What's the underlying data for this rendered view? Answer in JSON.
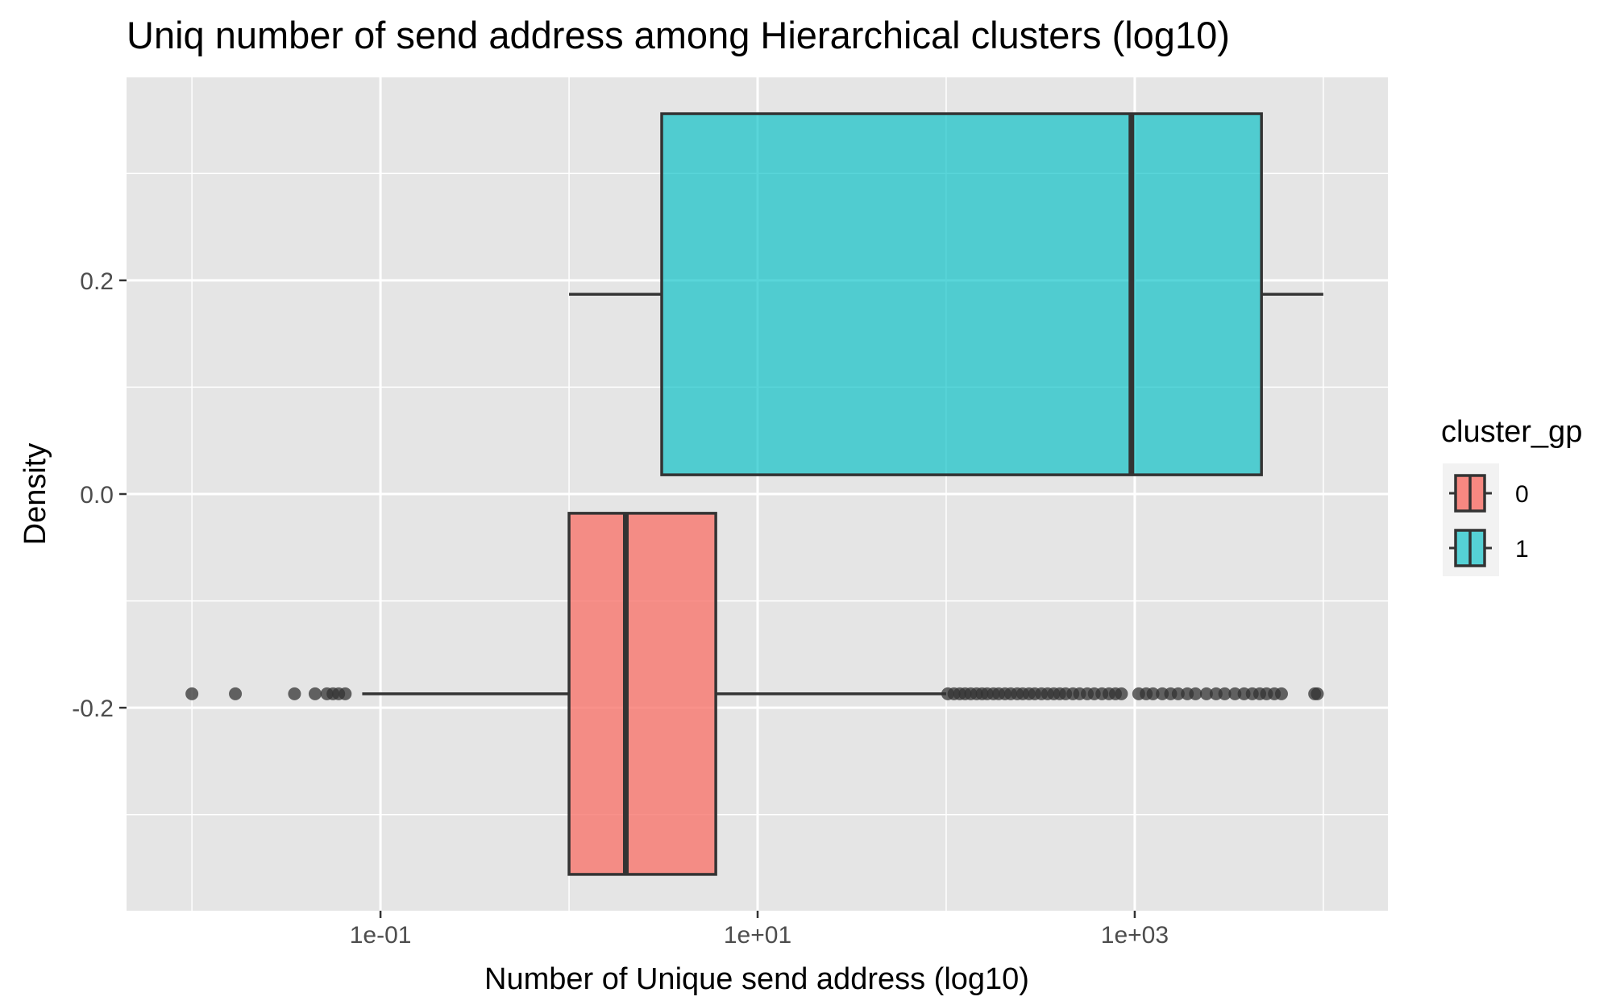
{
  "chart_data": {
    "type": "boxplot",
    "title": "Uniq number of send address among Hierarchical clusters (log10)",
    "xlabel": "Number of Unique send address (log10)",
    "ylabel": "Density",
    "x_scale": "log10",
    "xlim": [
      0.0045,
      22000
    ],
    "ylim": [
      -0.39,
      0.39
    ],
    "x_ticks": [
      {
        "value": 0.1,
        "label": "1e-01"
      },
      {
        "value": 10,
        "label": "1e+01"
      },
      {
        "value": 1000,
        "label": "1e+03"
      }
    ],
    "y_ticks": [
      {
        "value": 0.2,
        "label": "0.2"
      },
      {
        "value": 0.0,
        "label": "0.0"
      },
      {
        "value": -0.2,
        "label": "-0.2"
      }
    ],
    "grid": true,
    "legend": {
      "title": "cluster_gp",
      "position": "right",
      "entries": [
        {
          "label": "0",
          "color": "#F8766D"
        },
        {
          "label": "1",
          "color": "#00BFC4"
        }
      ]
    },
    "series": [
      {
        "name": "0",
        "color": "#F8766D",
        "box_y_range": [
          -0.356,
          -0.018
        ],
        "whisker_y": -0.187,
        "whisker_low": 0.08,
        "q1": 1.0,
        "median": 2.0,
        "q3": 6.0,
        "whisker_high": 100,
        "outliers": [
          0.01,
          0.017,
          0.035,
          0.045,
          0.052,
          0.056,
          0.06,
          0.065,
          102,
          110,
          118,
          126,
          135,
          145,
          155,
          165,
          178,
          190,
          205,
          220,
          238,
          255,
          275,
          295,
          320,
          345,
          372,
          400,
          430,
          470,
          510,
          560,
          610,
          670,
          730,
          790,
          850,
          1050,
          1150,
          1250,
          1400,
          1550,
          1700,
          1900,
          2100,
          2400,
          2700,
          3000,
          3400,
          3800,
          4200,
          4600,
          5000,
          5500,
          6000,
          9000,
          9300
        ]
      },
      {
        "name": "1",
        "color": "#00BFC4",
        "box_y_range": [
          0.018,
          0.356
        ],
        "whisker_y": 0.187,
        "whisker_low": 1.0,
        "q1": 3.1,
        "median": 960,
        "q3": 4700,
        "whisker_high": 10000,
        "outliers": []
      }
    ]
  }
}
